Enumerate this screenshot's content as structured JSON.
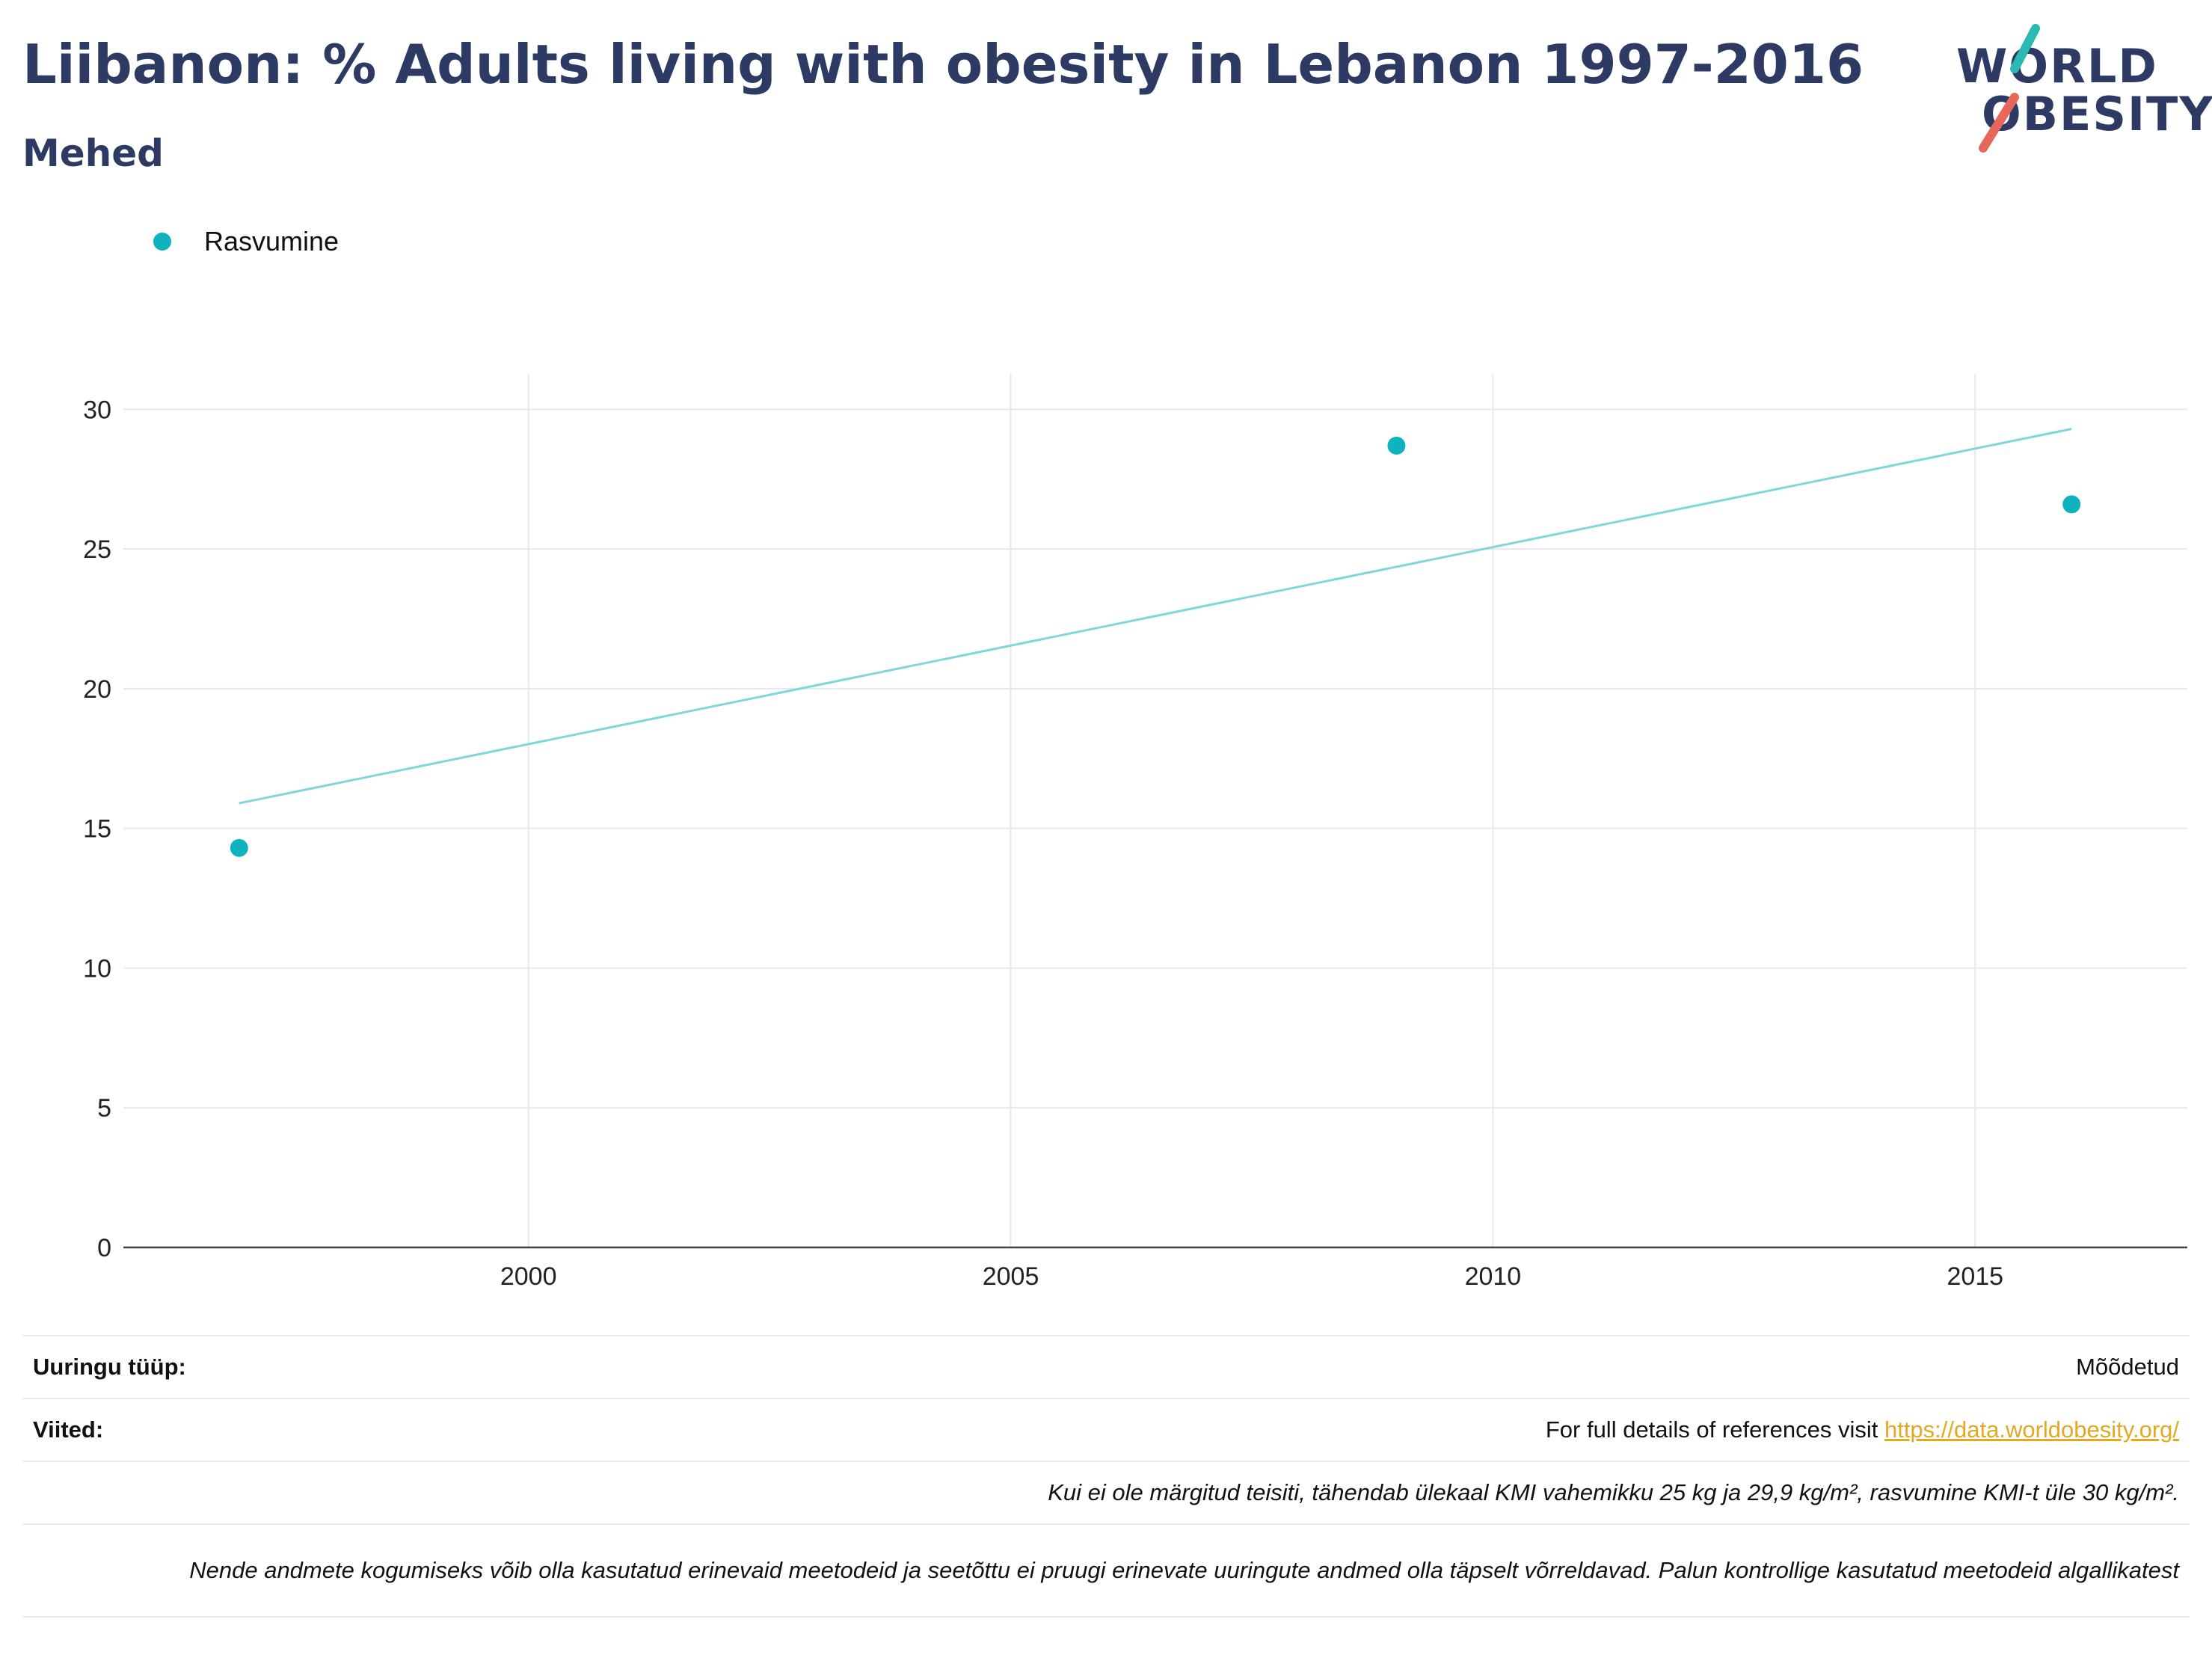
{
  "header": {
    "title": "Liibanon: % Adults living with obesity in Lebanon 1997-2016",
    "subtitle": "Mehed"
  },
  "logo": {
    "line1": "WORLD",
    "line2": "OBESITY",
    "accent_teal": "#2bb9b3",
    "accent_red": "#e8675b"
  },
  "legend": {
    "label": "Rasvumine",
    "color": "#0eb3bd"
  },
  "chart_data": {
    "type": "scatter",
    "series": [
      {
        "name": "Rasvumine",
        "x": [
          1997,
          2009,
          2016
        ],
        "y": [
          14.3,
          28.7,
          26.6
        ],
        "color": "#0eb3bd"
      }
    ],
    "trendline": {
      "x": [
        1997,
        2016
      ],
      "y": [
        15.9,
        29.3
      ],
      "color": "#7fd6dc"
    },
    "xlim": [
      1995.8,
      2017.2
    ],
    "ylim": [
      0,
      31
    ],
    "xticks": [
      2000,
      2005,
      2010,
      2015
    ],
    "yticks": [
      0,
      5,
      10,
      15,
      20,
      25,
      30
    ],
    "grid": true,
    "xlabel": "",
    "ylabel": ""
  },
  "footer": {
    "survey_type_label": "Uuringu tüüp:",
    "survey_type_value": "Mõõdetud",
    "references_label": "Viited:",
    "references_text": "For full details of references visit ",
    "references_link": "https://data.worldobesity.org/",
    "note1": "Kui ei ole märgitud teisiti, tähendab ülekaal KMI vahemikku 25 kg ja 29,9 kg/m², rasvumine KMI-t üle 30 kg/m².",
    "note2": "Nende andmete kogumiseks võib olla kasutatud erinevaid meetodeid ja seetõttu ei pruugi erinevate uuringute andmed olla täpselt võrreldavad. Palun kontrollige kasutatud meetodeid algallikatest"
  }
}
